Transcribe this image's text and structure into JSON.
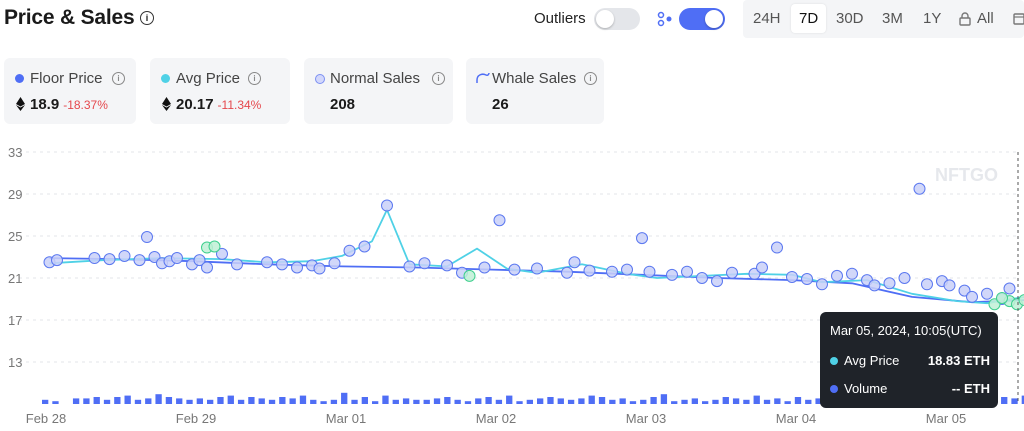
{
  "header": {
    "title": "Price & Sales",
    "outliers_label": "Outliers",
    "outliers_enabled": false,
    "filter_enabled": true,
    "ranges": [
      "24H",
      "7D",
      "30D",
      "3M",
      "1Y",
      "All"
    ],
    "active_range": "7D"
  },
  "cards": [
    {
      "label": "Floor Price",
      "value": "18.9",
      "change": "-18.37%",
      "color": "#4f6ef5",
      "eth": true
    },
    {
      "label": "Avg Price",
      "value": "20.17",
      "change": "-11.34%",
      "color": "#4fd1e6",
      "eth": true
    },
    {
      "label": "Normal Sales",
      "value": "208",
      "color": "#c7cdfa",
      "eth": false
    },
    {
      "label": "Whale Sales",
      "value": "26",
      "color": "#4f6ef5",
      "eth": false
    }
  ],
  "watermark": "NFTGO",
  "tooltip": {
    "title": "Mar 05, 2024, 10:05(UTC)",
    "rows": [
      {
        "label": "Avg Price",
        "value": "18.83 ETH",
        "color": "#4fd1e6"
      },
      {
        "label": "Volume",
        "value": "-- ETH",
        "color": "#4f6ef5"
      }
    ]
  },
  "colors": {
    "floor": "#4f6ef5",
    "avg": "#4fd1e6",
    "point": "#c9d0f8",
    "point_stroke": "#5b78f0",
    "whale": "#3ecf8e",
    "volume": "#4f6ef5",
    "grid": "#e3e6ea"
  },
  "chart_data": {
    "type": "scatter",
    "x_labels": [
      "Feb 28",
      "Feb 29",
      "Mar 01",
      "Mar 02",
      "Mar 03",
      "Mar 04",
      "Mar 05"
    ],
    "y_ticks": [
      13,
      17,
      21,
      25,
      29,
      33
    ],
    "ylim": [
      9,
      33
    ],
    "xlim": [
      0,
      6.6
    ],
    "grid": true,
    "series": [
      {
        "name": "Floor Price",
        "kind": "line",
        "color": "#4f6ef5",
        "points": [
          [
            0.05,
            22.9
          ],
          [
            0.5,
            22.8
          ],
          [
            1,
            22.6
          ],
          [
            1.5,
            22.3
          ],
          [
            2,
            22.1
          ],
          [
            2.5,
            22.0
          ],
          [
            3,
            21.8
          ],
          [
            3.5,
            21.6
          ],
          [
            4,
            21.3
          ],
          [
            4.5,
            21.0
          ],
          [
            5,
            20.8
          ],
          [
            5.4,
            20.5
          ],
          [
            5.8,
            19.2
          ],
          [
            6.2,
            18.7
          ],
          [
            6.55,
            18.9
          ]
        ]
      },
      {
        "name": "Avg Price",
        "kind": "line",
        "color": "#4fd1e6",
        "points": [
          [
            0.05,
            22.4
          ],
          [
            0.4,
            22.7
          ],
          [
            0.8,
            22.9
          ],
          [
            1.2,
            22.8
          ],
          [
            1.5,
            22.5
          ],
          [
            1.8,
            22.6
          ],
          [
            2.0,
            23.1
          ],
          [
            2.2,
            24.5
          ],
          [
            2.3,
            27.5
          ],
          [
            2.45,
            22.3
          ],
          [
            2.7,
            22.1
          ],
          [
            2.9,
            23.8
          ],
          [
            3.1,
            21.9
          ],
          [
            3.3,
            21.5
          ],
          [
            3.6,
            22.3
          ],
          [
            3.9,
            21.4
          ],
          [
            4.1,
            21.0
          ],
          [
            4.4,
            21.2
          ],
          [
            4.7,
            21.4
          ],
          [
            5.0,
            21.3
          ],
          [
            5.2,
            20.6
          ],
          [
            5.5,
            20.8
          ],
          [
            5.8,
            19.5
          ],
          [
            6.1,
            18.8
          ],
          [
            6.3,
            18.6
          ],
          [
            6.55,
            19.2
          ]
        ]
      },
      {
        "name": "Normal Sales",
        "kind": "scatter",
        "points": [
          [
            0.05,
            22.5
          ],
          [
            0.1,
            22.7
          ],
          [
            0.35,
            22.9
          ],
          [
            0.45,
            22.8
          ],
          [
            0.55,
            23.1
          ],
          [
            0.65,
            22.7
          ],
          [
            0.7,
            24.9
          ],
          [
            0.75,
            23.0
          ],
          [
            0.8,
            22.4
          ],
          [
            0.85,
            22.6
          ],
          [
            0.9,
            22.9
          ],
          [
            1.0,
            22.3
          ],
          [
            1.05,
            22.7
          ],
          [
            1.1,
            22.0
          ],
          [
            1.2,
            23.3
          ],
          [
            1.3,
            22.3
          ],
          [
            1.5,
            22.5
          ],
          [
            1.6,
            22.3
          ],
          [
            1.7,
            22.0
          ],
          [
            1.8,
            22.2
          ],
          [
            1.85,
            21.9
          ],
          [
            1.95,
            22.4
          ],
          [
            2.05,
            23.6
          ],
          [
            2.15,
            24.0
          ],
          [
            2.3,
            27.9
          ],
          [
            2.45,
            22.1
          ],
          [
            2.55,
            22.4
          ],
          [
            2.7,
            22.2
          ],
          [
            2.8,
            21.5
          ],
          [
            2.95,
            22.0
          ],
          [
            3.05,
            26.5
          ],
          [
            3.15,
            21.8
          ],
          [
            3.3,
            21.9
          ],
          [
            3.5,
            21.5
          ],
          [
            3.55,
            22.5
          ],
          [
            3.65,
            21.7
          ],
          [
            3.8,
            21.6
          ],
          [
            3.9,
            21.8
          ],
          [
            4.0,
            24.8
          ],
          [
            4.05,
            21.6
          ],
          [
            4.2,
            21.3
          ],
          [
            4.3,
            21.6
          ],
          [
            4.4,
            21.0
          ],
          [
            4.5,
            20.7
          ],
          [
            4.6,
            21.5
          ],
          [
            4.75,
            21.4
          ],
          [
            4.8,
            22.0
          ],
          [
            4.9,
            23.9
          ],
          [
            5.0,
            21.1
          ],
          [
            5.1,
            20.9
          ],
          [
            5.2,
            20.4
          ],
          [
            5.3,
            21.2
          ],
          [
            5.4,
            21.4
          ],
          [
            5.5,
            20.8
          ],
          [
            5.55,
            20.3
          ],
          [
            5.65,
            20.5
          ],
          [
            5.75,
            21.0
          ],
          [
            5.85,
            29.5
          ],
          [
            5.9,
            20.4
          ],
          [
            6.0,
            20.7
          ],
          [
            6.05,
            20.3
          ],
          [
            6.15,
            19.8
          ],
          [
            6.2,
            19.2
          ],
          [
            6.3,
            19.5
          ],
          [
            6.4,
            19.0
          ],
          [
            6.45,
            20.0
          ]
        ]
      },
      {
        "name": "Whale Sales",
        "kind": "scatter",
        "points": [
          [
            1.1,
            23.9
          ],
          [
            1.15,
            24.0
          ],
          [
            2.85,
            21.2
          ],
          [
            6.35,
            18.5
          ],
          [
            6.45,
            18.8
          ],
          [
            6.5,
            18.5
          ],
          [
            6.55,
            18.9
          ],
          [
            6.6,
            18.7
          ],
          [
            6.4,
            19.1
          ]
        ]
      },
      {
        "name": "Volume",
        "kind": "bar",
        "values": [
          0.3,
          0.2,
          0.0,
          0.4,
          0.4,
          0.5,
          0.3,
          0.5,
          0.6,
          0.3,
          0.4,
          0.7,
          0.5,
          0.4,
          0.3,
          0.4,
          0.3,
          0.5,
          0.6,
          0.3,
          0.5,
          0.4,
          0.3,
          0.5,
          0.4,
          0.6,
          0.3,
          0.2,
          0.3,
          0.8,
          0.3,
          0.5,
          0.2,
          0.6,
          0.3,
          0.4,
          0.3,
          0.3,
          0.4,
          0.5,
          0.3,
          0.2,
          0.4,
          0.5,
          0.3,
          0.6,
          0.2,
          0.3,
          0.4,
          0.5,
          0.4,
          0.3,
          0.4,
          0.6,
          0.5,
          0.3,
          0.4,
          0.2,
          0.3,
          0.5,
          0.7,
          0.2,
          0.3,
          0.4,
          0.2,
          0.3,
          0.5,
          0.4,
          0.3,
          0.6,
          0.3,
          0.4,
          0.2,
          0.5,
          0.3,
          0.4,
          0.2,
          0.3,
          0.9,
          1.0,
          0.3,
          0.4,
          0.3,
          0.5,
          0.2,
          0.4,
          0.3,
          0.4,
          0.6,
          0.3,
          0.5,
          0.2,
          0.3,
          0.5,
          0.4,
          0.6
        ]
      }
    ]
  }
}
